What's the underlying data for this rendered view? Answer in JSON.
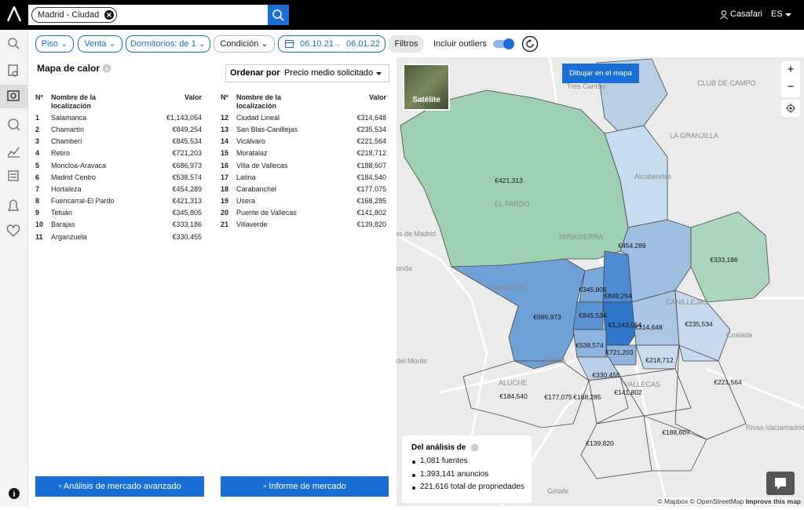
{
  "topbar": {
    "search_chip": "Madrid - Ciudad",
    "user": "Casafari",
    "language": "ES"
  },
  "filters": {
    "property_type": "Piso",
    "operation": "Venta",
    "bedrooms": "Dormitorios: de 1",
    "condition": "Condición",
    "date_from": "06.10.21",
    "date_to": "06.01.22",
    "more_filters": "Filtros",
    "outliers": "Incluir outliers",
    "outliers_on": true
  },
  "panel": {
    "title": "Mapa de calor",
    "sort_label": "Ordenar por",
    "sort_value": "Precio medio solicitado",
    "columns": [
      "Nº",
      "Nombre de la localización",
      "Valor"
    ],
    "rows": [
      {
        "rank": 1,
        "name": "Salamanca",
        "value": "€1,143,054"
      },
      {
        "rank": 2,
        "name": "Chamartín",
        "value": "€849,254"
      },
      {
        "rank": 3,
        "name": "Chamberí",
        "value": "€845,534"
      },
      {
        "rank": 4,
        "name": "Retiro",
        "value": "€721,203"
      },
      {
        "rank": 5,
        "name": "Moncloa-Aravaca",
        "value": "€686,973"
      },
      {
        "rank": 6,
        "name": "Madrid Centro",
        "value": "€538,574"
      },
      {
        "rank": 7,
        "name": "Hortaleza",
        "value": "€454,289"
      },
      {
        "rank": 8,
        "name": "Fuencarral-El Pardo",
        "value": "€421,313"
      },
      {
        "rank": 9,
        "name": "Tetuán",
        "value": "€345,805"
      },
      {
        "rank": 10,
        "name": "Barajas",
        "value": "€333,186"
      },
      {
        "rank": 11,
        "name": "Arganzuela",
        "value": "€330,455"
      },
      {
        "rank": 12,
        "name": "Ciudad Lineal",
        "value": "€314,648"
      },
      {
        "rank": 13,
        "name": "San Blas-Canillejas",
        "value": "€235,534"
      },
      {
        "rank": 14,
        "name": "Vicálvaro",
        "value": "€221,564"
      },
      {
        "rank": 15,
        "name": "Moratalaz",
        "value": "€218,712"
      },
      {
        "rank": 16,
        "name": "Villa de Vallecas",
        "value": "€188,607"
      },
      {
        "rank": 17,
        "name": "Latina",
        "value": "€184,540"
      },
      {
        "rank": 18,
        "name": "Carabanchel",
        "value": "€177,075"
      },
      {
        "rank": 19,
        "name": "Usera",
        "value": "€168,285"
      },
      {
        "rank": 20,
        "name": "Puente de Vallecas",
        "value": "€141,802"
      },
      {
        "rank": 21,
        "name": "Villaverde",
        "value": "€139,820"
      }
    ]
  },
  "buttons": [
    "Análisis de mercado avanzado",
    "Informe de mercado"
  ],
  "map": {
    "satellite": "Satélite",
    "draw": "Dibujar en el mapa",
    "zoom_in": "+",
    "zoom_out": "−",
    "places": [
      "Tres Cantos",
      "CLUB DE CAMPO",
      "Alcobendas",
      "LA GRANJILLA",
      "EL PARDO",
      "MIRASIERRA",
      "Las Rozas de Madrid",
      "Majadahonda",
      "ARAVACA",
      "CANILLEJAS",
      "Coslada",
      "Boadilla del Monte",
      "LATINA",
      "ALUCHE",
      "VALLECAS",
      "Getafe",
      "Rivas-Vaciamadrid"
    ],
    "attribution": "© Mapbox © OpenStreetMap",
    "improve": "Improve this map"
  },
  "analysis": {
    "title": "Del análisis de",
    "items": [
      "1,081 fuentes",
      "1,393,141 anuncios",
      "221,616 total de propriedades"
    ]
  }
}
